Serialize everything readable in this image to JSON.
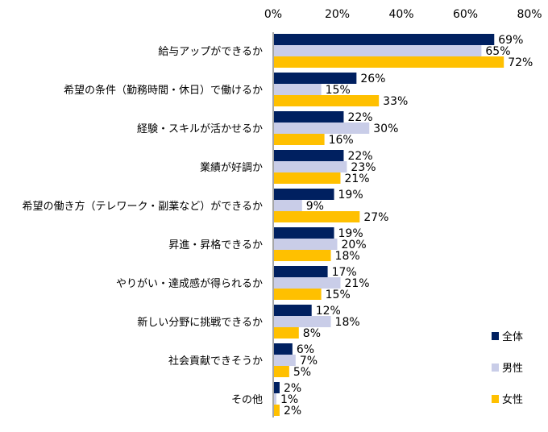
{
  "chart_data": {
    "type": "bar",
    "orientation": "horizontal",
    "title": "",
    "xlabel": "",
    "ylabel": "",
    "xlim": [
      0,
      80
    ],
    "x_ticks": [
      "0%",
      "20%",
      "40%",
      "60%",
      "80%"
    ],
    "x_tick_values": [
      0,
      20,
      40,
      60,
      80
    ],
    "grid": false,
    "legend_position": "bottom-right",
    "categories": [
      "給与アップができるか",
      "希望の条件（勤務時間・休日）で働けるか",
      "経験・スキルが活かせるか",
      "業績が好調か",
      "希望の働き方（テレワーク・副業など）ができるか",
      "昇進・昇格できるか",
      "やりがい・達成感が得られるか",
      "新しい分野に挑戦できるか",
      "社会貢献できそうか",
      "その他"
    ],
    "series": [
      {
        "name": "全体",
        "color": "#002060",
        "values": [
          69,
          26,
          22,
          22,
          19,
          19,
          17,
          12,
          6,
          2
        ]
      },
      {
        "name": "男性",
        "color": "#C9CDE8",
        "values": [
          65,
          15,
          30,
          23,
          9,
          20,
          21,
          18,
          7,
          1
        ]
      },
      {
        "name": "女性",
        "color": "#FFC000",
        "values": [
          72,
          33,
          16,
          21,
          27,
          18,
          15,
          8,
          5,
          2
        ]
      }
    ],
    "value_suffix": "%"
  }
}
